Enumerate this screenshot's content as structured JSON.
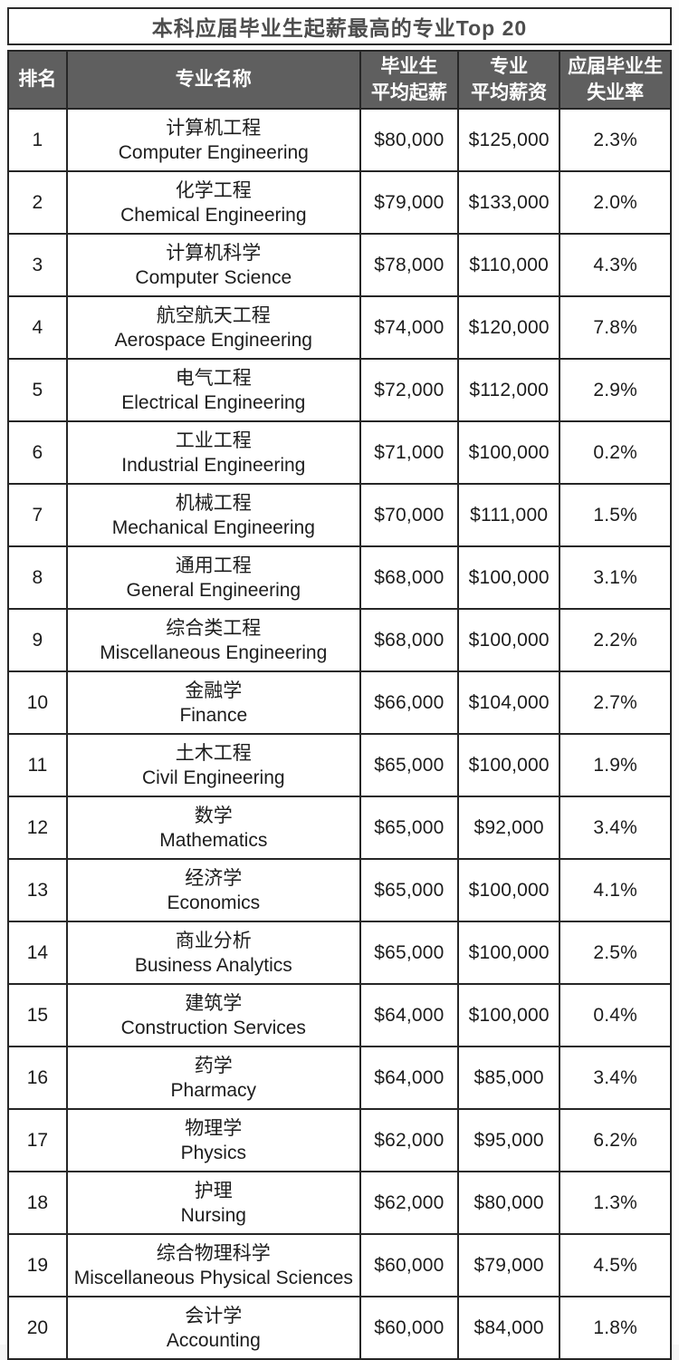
{
  "title": "本科应届毕业生起薪最高的专业Top 20",
  "table": {
    "headers": {
      "rank": "排名",
      "major": "专业名称",
      "starting_salary": "毕业生\n平均起薪",
      "average_salary": "专业\n平均薪资",
      "unemployment_rate": "应届毕业生\n失业率"
    },
    "rows": [
      {
        "rank": "1",
        "major_zh": "计算机工程",
        "major_en": "Computer Engineering",
        "starting_salary": "$80,000",
        "average_salary": "$125,000",
        "unemployment_rate": "2.3%"
      },
      {
        "rank": "2",
        "major_zh": "化学工程",
        "major_en": "Chemical Engineering",
        "starting_salary": "$79,000",
        "average_salary": "$133,000",
        "unemployment_rate": "2.0%"
      },
      {
        "rank": "3",
        "major_zh": "计算机科学",
        "major_en": "Computer Science",
        "starting_salary": "$78,000",
        "average_salary": "$110,000",
        "unemployment_rate": "4.3%"
      },
      {
        "rank": "4",
        "major_zh": "航空航天工程",
        "major_en": "Aerospace Engineering",
        "starting_salary": "$74,000",
        "average_salary": "$120,000",
        "unemployment_rate": "7.8%"
      },
      {
        "rank": "5",
        "major_zh": "电气工程",
        "major_en": "Electrical Engineering",
        "starting_salary": "$72,000",
        "average_salary": "$112,000",
        "unemployment_rate": "2.9%"
      },
      {
        "rank": "6",
        "major_zh": "工业工程",
        "major_en": "Industrial Engineering",
        "starting_salary": "$71,000",
        "average_salary": "$100,000",
        "unemployment_rate": "0.2%"
      },
      {
        "rank": "7",
        "major_zh": "机械工程",
        "major_en": "Mechanical Engineering",
        "starting_salary": "$70,000",
        "average_salary": "$111,000",
        "unemployment_rate": "1.5%"
      },
      {
        "rank": "8",
        "major_zh": "通用工程",
        "major_en": "General Engineering",
        "starting_salary": "$68,000",
        "average_salary": "$100,000",
        "unemployment_rate": "3.1%"
      },
      {
        "rank": "9",
        "major_zh": "综合类工程",
        "major_en": "Miscellaneous Engineering",
        "starting_salary": "$68,000",
        "average_salary": "$100,000",
        "unemployment_rate": "2.2%"
      },
      {
        "rank": "10",
        "major_zh": "金融学",
        "major_en": "Finance",
        "starting_salary": "$66,000",
        "average_salary": "$104,000",
        "unemployment_rate": "2.7%"
      },
      {
        "rank": "11",
        "major_zh": "土木工程",
        "major_en": "Civil Engineering",
        "starting_salary": "$65,000",
        "average_salary": "$100,000",
        "unemployment_rate": "1.9%"
      },
      {
        "rank": "12",
        "major_zh": "数学",
        "major_en": "Mathematics",
        "starting_salary": "$65,000",
        "average_salary": "$92,000",
        "unemployment_rate": "3.4%"
      },
      {
        "rank": "13",
        "major_zh": "经济学",
        "major_en": "Economics",
        "starting_salary": "$65,000",
        "average_salary": "$100,000",
        "unemployment_rate": "4.1%"
      },
      {
        "rank": "14",
        "major_zh": "商业分析",
        "major_en": "Business Analytics",
        "starting_salary": "$65,000",
        "average_salary": "$100,000",
        "unemployment_rate": "2.5%"
      },
      {
        "rank": "15",
        "major_zh": "建筑学",
        "major_en": "Construction Services",
        "starting_salary": "$64,000",
        "average_salary": "$100,000",
        "unemployment_rate": "0.4%"
      },
      {
        "rank": "16",
        "major_zh": "药学",
        "major_en": "Pharmacy",
        "starting_salary": "$64,000",
        "average_salary": "$85,000",
        "unemployment_rate": "3.4%"
      },
      {
        "rank": "17",
        "major_zh": "物理学",
        "major_en": "Physics",
        "starting_salary": "$62,000",
        "average_salary": "$95,000",
        "unemployment_rate": "6.2%"
      },
      {
        "rank": "18",
        "major_zh": "护理",
        "major_en": "Nursing",
        "starting_salary": "$62,000",
        "average_salary": "$80,000",
        "unemployment_rate": "1.3%"
      },
      {
        "rank": "19",
        "major_zh": "综合物理科学",
        "major_en": "Miscellaneous Physical Sciences",
        "starting_salary": "$60,000",
        "average_salary": "$79,000",
        "unemployment_rate": "4.5%"
      },
      {
        "rank": "20",
        "major_zh": "会计学",
        "major_en": "Accounting",
        "starting_salary": "$60,000",
        "average_salary": "$84,000",
        "unemployment_rate": "1.8%"
      }
    ]
  },
  "colors": {
    "header_bg": "#5f5f5f",
    "header_text": "#ffffff",
    "border": "#262626",
    "title_text": "#4d4d4d",
    "body_text": "#1c1c1c",
    "row_bg": "#ffffff"
  },
  "chart_data": {
    "type": "table",
    "title": "本科应届毕业生起薪最高的专业Top 20",
    "columns": [
      "排名",
      "专业名称",
      "毕业生平均起薪",
      "专业平均薪资",
      "应届毕业生失业率"
    ],
    "rows": [
      [
        "1",
        "计算机工程 Computer Engineering",
        "$80,000",
        "$125,000",
        "2.3%"
      ],
      [
        "2",
        "化学工程 Chemical Engineering",
        "$79,000",
        "$133,000",
        "2.0%"
      ],
      [
        "3",
        "计算机科学 Computer Science",
        "$78,000",
        "$110,000",
        "4.3%"
      ],
      [
        "4",
        "航空航天工程 Aerospace Engineering",
        "$74,000",
        "$120,000",
        "7.8%"
      ],
      [
        "5",
        "电气工程 Electrical Engineering",
        "$72,000",
        "$112,000",
        "2.9%"
      ],
      [
        "6",
        "工业工程 Industrial Engineering",
        "$71,000",
        "$100,000",
        "0.2%"
      ],
      [
        "7",
        "机械工程 Mechanical Engineering",
        "$70,000",
        "$111,000",
        "1.5%"
      ],
      [
        "8",
        "通用工程 General Engineering",
        "$68,000",
        "$100,000",
        "3.1%"
      ],
      [
        "9",
        "综合类工程 Miscellaneous Engineering",
        "$68,000",
        "$100,000",
        "2.2%"
      ],
      [
        "10",
        "金融学 Finance",
        "$66,000",
        "$104,000",
        "2.7%"
      ],
      [
        "11",
        "土木工程 Civil Engineering",
        "$65,000",
        "$100,000",
        "1.9%"
      ],
      [
        "12",
        "数学 Mathematics",
        "$65,000",
        "$92,000",
        "3.4%"
      ],
      [
        "13",
        "经济学 Economics",
        "$65,000",
        "$100,000",
        "4.1%"
      ],
      [
        "14",
        "商业分析 Business Analytics",
        "$65,000",
        "$100,000",
        "2.5%"
      ],
      [
        "15",
        "建筑学 Construction Services",
        "$64,000",
        "$100,000",
        "0.4%"
      ],
      [
        "16",
        "药学 Pharmacy",
        "$64,000",
        "$85,000",
        "3.4%"
      ],
      [
        "17",
        "物理学 Physics",
        "$62,000",
        "$95,000",
        "6.2%"
      ],
      [
        "18",
        "护理 Nursing",
        "$62,000",
        "$80,000",
        "1.3%"
      ],
      [
        "19",
        "综合物理科学 Miscellaneous Physical Sciences",
        "$60,000",
        "$79,000",
        "4.5%"
      ],
      [
        "20",
        "会计学 Accounting",
        "$60,000",
        "$84,000",
        "1.8%"
      ]
    ]
  }
}
